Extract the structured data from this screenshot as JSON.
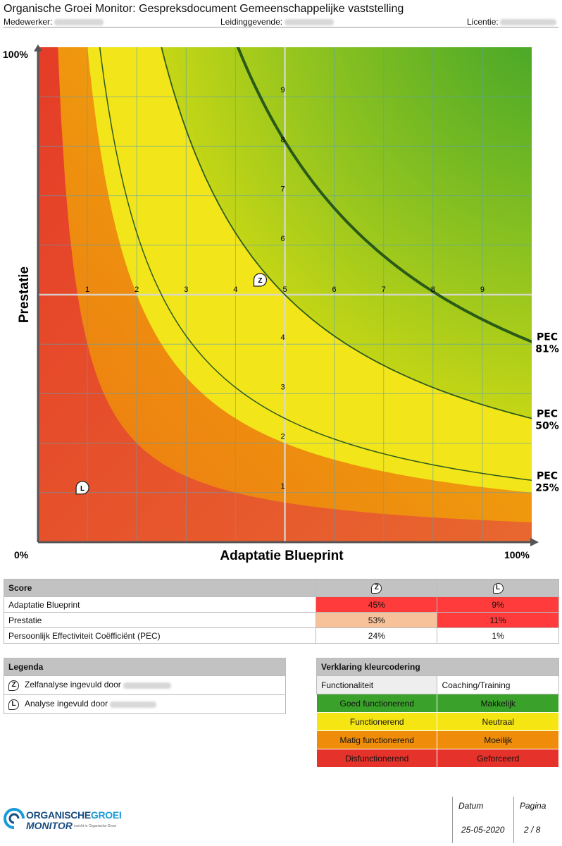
{
  "header": {
    "title": "Organische Groei Monitor: Gespreksdocument Gemeenschappelijke vaststelling",
    "medewerker_label": "Medewerker:",
    "leidinggevende_label": "Leidinggevende:",
    "licentie_label": "Licentie:"
  },
  "chart_data": {
    "type": "scatter",
    "xlabel": "Adaptatie Blueprint",
    "ylabel": "Prestatie",
    "x_min_label": "0%",
    "x_max_label": "100%",
    "y_max_label": "100%",
    "xlim": [
      0,
      10
    ],
    "ylim": [
      0,
      10
    ],
    "x_ticks": [
      "1",
      "2",
      "3",
      "4",
      "5",
      "6",
      "7",
      "8",
      "9"
    ],
    "y_ticks": [
      "1",
      "2",
      "3",
      "4",
      "5",
      "6",
      "7",
      "8",
      "9"
    ],
    "pec_curves": [
      {
        "name": "PEC",
        "label": "25%",
        "k": 12.5
      },
      {
        "name": "PEC",
        "label": "50%",
        "k": 25
      },
      {
        "name": "PEC",
        "label": "81%",
        "k": 40.5
      }
    ],
    "zone_colors": {
      "green": "#3aa22a",
      "yellow": "#f2e51a",
      "orange": "#f0a30a",
      "red": "#e64027"
    },
    "points": [
      {
        "marker": "Z",
        "x": 4.5,
        "y": 5.3
      },
      {
        "marker": "L",
        "x": 0.9,
        "y": 1.1
      }
    ]
  },
  "score": {
    "header": "Score",
    "col1_marker": "Z",
    "col2_marker": "L",
    "rows": [
      {
        "label": "Adaptatie Blueprint",
        "z": "45%",
        "l": "9%",
        "z_color": "#ff3b3b",
        "l_color": "#ff3b3b"
      },
      {
        "label": "Prestatie",
        "z": "53%",
        "l": "11%",
        "z_color": "#f7c29a",
        "l_color": "#ff3b3b"
      },
      {
        "label": "Persoonlijk Effectiviteit Coëfficiënt (PEC)",
        "z": "24%",
        "l": "1%",
        "z_color": "#ffffff",
        "l_color": "#ffffff"
      }
    ]
  },
  "legend": {
    "header": "Legenda",
    "items": [
      {
        "marker": "Z",
        "text": "Zelfanalyse ingevuld door"
      },
      {
        "marker": "L",
        "text": "Analyse ingevuld door"
      }
    ]
  },
  "kleur": {
    "header": "Verklaring kleurcodering",
    "col1": "Functionaliteit",
    "col2": "Coaching/Training",
    "rows": [
      {
        "a": "Goed functionerend",
        "b": "Makkelijk",
        "color": "#3aa22a"
      },
      {
        "a": "Functionerend",
        "b": "Neutraal",
        "color": "#f5e512"
      },
      {
        "a": "Matig functionerend",
        "b": "Moeilijk",
        "color": "#ef8d0a"
      },
      {
        "a": "Disfunctionerend",
        "b": "Geforceerd",
        "color": "#e5322b"
      }
    ]
  },
  "footer": {
    "logo_line1": "ORGANISCHE",
    "logo_line1b": "GROEI",
    "logo_line2": "MONITOR",
    "logo_tag": "inzicht in Organische Groei",
    "datum_label": "Datum",
    "datum": "25-05-2020",
    "pagina_label": "Pagina",
    "pagina": "2 / 8"
  }
}
